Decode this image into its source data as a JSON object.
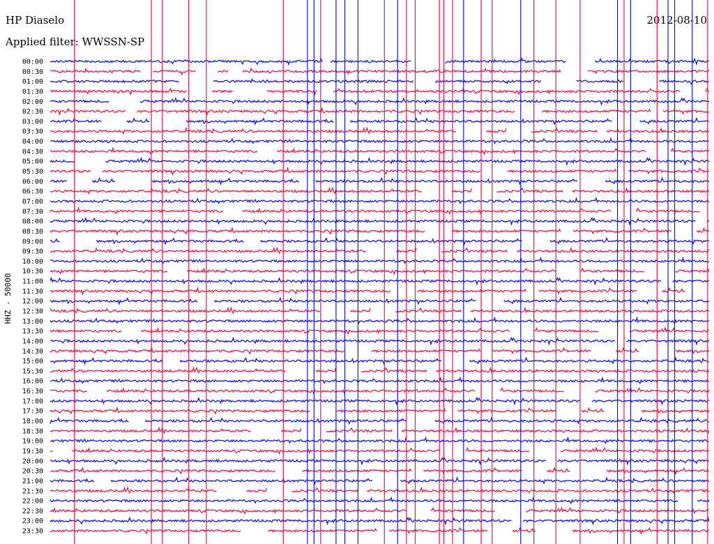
{
  "header": {
    "station": "HP Diaselo",
    "date": "2012-08-10",
    "filter": "Applied filter: WWSSN-SP"
  },
  "chart_data": {
    "type": "line",
    "title": "HP Diaselo",
    "subtitle": "Applied filter: WWSSN-SP",
    "ylabel": "HHZ - 50000",
    "row_labels": [
      "00:00",
      "00:30",
      "01:00",
      "01:30",
      "02:00",
      "02:30",
      "03:00",
      "03:30",
      "04:00",
      "04:30",
      "05:00",
      "05:30",
      "06:00",
      "06:30",
      "07:00",
      "07:30",
      "08:00",
      "08:30",
      "09:00",
      "09:30",
      "10:00",
      "10:30",
      "11:00",
      "11:30",
      "12:00",
      "12:30",
      "13:00",
      "13:30",
      "14:00",
      "14:30",
      "15:00",
      "15:30",
      "16:00",
      "16:30",
      "17:00",
      "17:30",
      "18:00",
      "18:30",
      "19:00",
      "19:30",
      "20:00",
      "20:30",
      "21:00",
      "21:30",
      "22:00",
      "22:30",
      "23:00",
      "23:30"
    ],
    "series_colors": [
      "#1414dc",
      "#eb1446"
    ],
    "trace_minutes": 30,
    "spike_minutes_blue": [
      11.7,
      12.0,
      13.0,
      13.4,
      14.0,
      15.8,
      18.8,
      21.4,
      25.8,
      26.4,
      28.1,
      28.4,
      29.2
    ],
    "spike_minutes_red": [
      1.1,
      4.6,
      5.1,
      6.3,
      7.1,
      10.6,
      12.3,
      15.2,
      16.2,
      16.6,
      17.7,
      17.9,
      18.3,
      19.6,
      20.1,
      22.0,
      23.0,
      24.1,
      26.1,
      27.6,
      29.9
    ]
  }
}
